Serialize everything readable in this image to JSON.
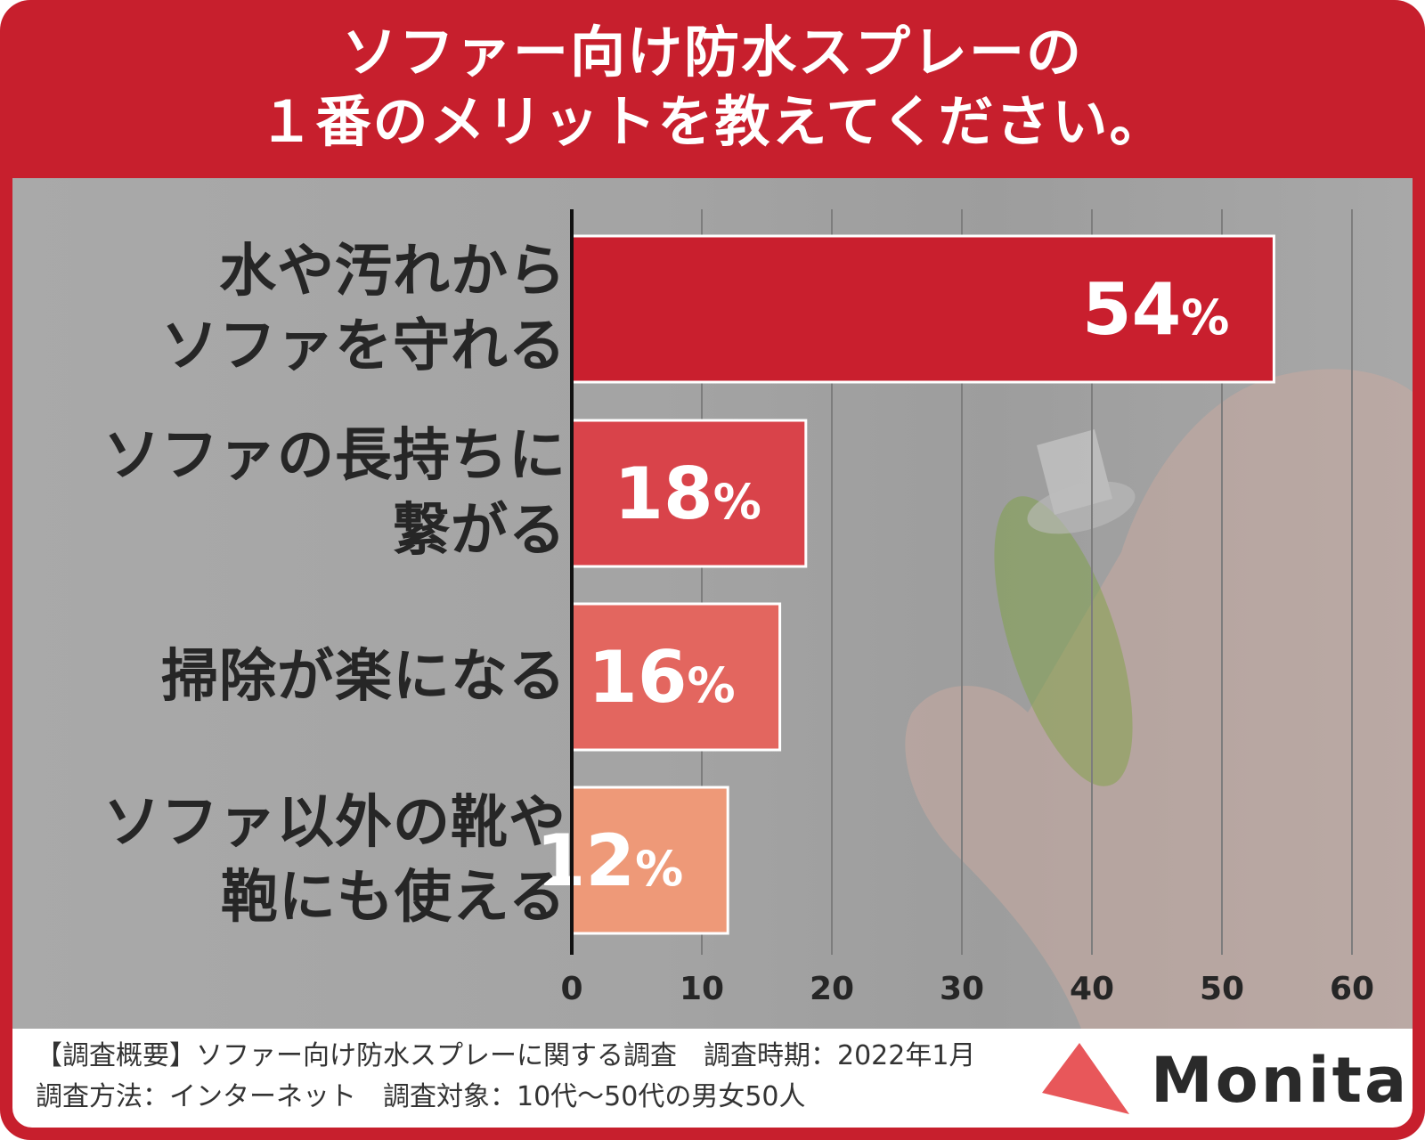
{
  "title": {
    "line1": "ソファー向け防水スプレーの",
    "line2": "１番のメリットを教えてください。"
  },
  "chart_data": {
    "type": "bar",
    "orientation": "horizontal",
    "categories": [
      [
        "水や汚れから",
        "ソファを守れる"
      ],
      [
        "ソファの長持ちに",
        "繋がる"
      ],
      [
        "掃除が楽になる"
      ],
      [
        "ソファ以外の靴や",
        "鞄にも使える"
      ]
    ],
    "values": [
      54,
      18,
      16,
      12
    ],
    "data_labels": [
      "54%",
      "18%",
      "16%",
      "12%"
    ],
    "bar_colors": [
      "#c91f2e",
      "#d9434a",
      "#e3665f",
      "#ee9978"
    ],
    "xlim": [
      0,
      60
    ],
    "xticks": [
      "0",
      "10",
      "20",
      "30",
      "40",
      "50",
      "60"
    ],
    "grid": true,
    "xlabel": "",
    "ylabel": ""
  },
  "footer": {
    "line1": "【調査概要】ソファー向け防水スプレーに関する調査　調査時期：2022年1月",
    "line2": "調査方法：インターネット　調査対象：10代～50代の男女50人"
  },
  "logo": {
    "text": "Monita",
    "color": "#e8575a"
  },
  "colors": {
    "frame": "#c71f2d",
    "axis": "#111111",
    "grid": "#7d7d7d"
  }
}
